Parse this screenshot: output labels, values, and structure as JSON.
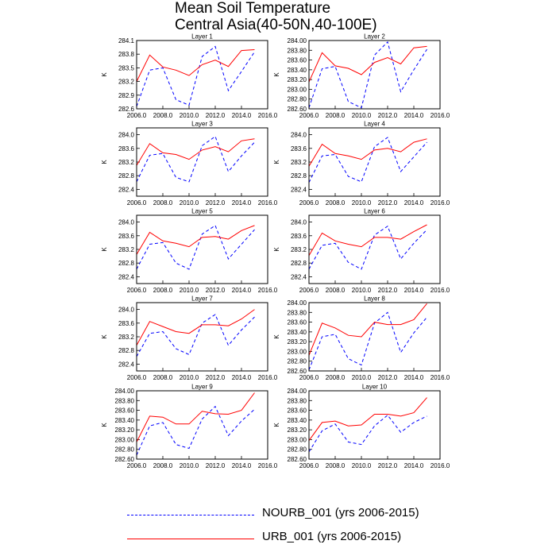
{
  "title": {
    "line1": "Mean Soil Temperature",
    "line2": "Central Asia(40-50N,40-100E)"
  },
  "legend": {
    "items": [
      {
        "label": "NOURB_001 (yrs 2006-2015)",
        "color": "#0000ff",
        "style": "dashed"
      },
      {
        "label": "URB_001 (yrs 2006-2015)",
        "color": "#ff0000",
        "style": "solid"
      }
    ]
  },
  "chart_data": [
    {
      "type": "line",
      "title": "Layer 1",
      "ylabel": "K",
      "x": [
        2006,
        2007,
        2008,
        2009,
        2010,
        2011,
        2012,
        2013,
        2014,
        2015
      ],
      "xlim": [
        2006,
        2016
      ],
      "xticks": [
        "2006.0",
        "2008.0",
        "2010.0",
        "2012.0",
        "2014.0",
        "2016.0"
      ],
      "ylim": [
        282.6,
        284.1
      ],
      "yticks": [
        "282.6",
        "282.9",
        "283.2",
        "283.5",
        "283.8",
        "284.1"
      ],
      "grid": false,
      "series": [
        {
          "name": "NOURB_001 (yrs 2006-2015)",
          "color": "#0000ff",
          "dashed": true,
          "values": [
            282.65,
            283.45,
            283.5,
            282.8,
            282.68,
            283.75,
            283.97,
            283.0,
            283.42,
            283.85
          ]
        },
        {
          "name": "URB_001 (yrs 2006-2015)",
          "color": "#ff0000",
          "dashed": false,
          "values": [
            283.2,
            283.78,
            283.52,
            283.45,
            283.33,
            283.57,
            283.67,
            283.53,
            283.88,
            283.9
          ]
        }
      ]
    },
    {
      "type": "line",
      "title": "Layer 2",
      "ylabel": "K",
      "x": [
        2006,
        2007,
        2008,
        2009,
        2010,
        2011,
        2012,
        2013,
        2014,
        2015
      ],
      "xlim": [
        2006,
        2016
      ],
      "xticks": [
        "2006.0",
        "2008.0",
        "2010.0",
        "2012.0",
        "2014.0",
        "2016.0"
      ],
      "ylim": [
        282.6,
        284.0
      ],
      "yticks": [
        "282.60",
        "282.80",
        "283.00",
        "283.20",
        "283.40",
        "283.60",
        "283.80",
        "284.00"
      ],
      "grid": false,
      "series": [
        {
          "name": "NOURB_001 (yrs 2006-2015)",
          "color": "#0000ff",
          "dashed": true,
          "values": [
            282.62,
            283.42,
            283.47,
            282.75,
            282.62,
            283.7,
            283.97,
            282.95,
            283.4,
            283.82
          ]
        },
        {
          "name": "URB_001 (yrs 2006-2015)",
          "color": "#ff0000",
          "dashed": false,
          "values": [
            283.15,
            283.75,
            283.48,
            283.43,
            283.3,
            283.55,
            283.65,
            283.52,
            283.85,
            283.88
          ]
        }
      ]
    },
    {
      "type": "line",
      "title": "Layer 3",
      "ylabel": "K",
      "x": [
        2006,
        2007,
        2008,
        2009,
        2010,
        2011,
        2012,
        2013,
        2014,
        2015
      ],
      "xlim": [
        2006,
        2016
      ],
      "xticks": [
        "2006.0",
        "2008.0",
        "2010.0",
        "2012.0",
        "2014.0",
        "2016.0"
      ],
      "ylim": [
        282.2,
        284.2
      ],
      "yticks": [
        "282.4",
        "282.8",
        "283.2",
        "283.6",
        "284.0"
      ],
      "grid": false,
      "series": [
        {
          "name": "NOURB_001 (yrs 2006-2015)",
          "color": "#0000ff",
          "dashed": true,
          "values": [
            282.62,
            283.4,
            283.45,
            282.75,
            282.62,
            283.68,
            283.95,
            282.92,
            283.38,
            283.78
          ]
        },
        {
          "name": "URB_001 (yrs 2006-2015)",
          "color": "#ff0000",
          "dashed": false,
          "values": [
            283.1,
            283.74,
            283.47,
            283.42,
            283.28,
            283.55,
            283.65,
            283.5,
            283.82,
            283.88
          ]
        }
      ]
    },
    {
      "type": "line",
      "title": "Layer 4",
      "ylabel": "K",
      "x": [
        2006,
        2007,
        2008,
        2009,
        2010,
        2011,
        2012,
        2013,
        2014,
        2015
      ],
      "xlim": [
        2006,
        2016
      ],
      "xticks": [
        "2006.0",
        "2008.0",
        "2010.0",
        "2012.0",
        "2014.0",
        "2016.0"
      ],
      "ylim": [
        282.2,
        284.2
      ],
      "yticks": [
        "282.4",
        "282.8",
        "283.2",
        "283.6",
        "284.0"
      ],
      "grid": false,
      "series": [
        {
          "name": "NOURB_001 (yrs 2006-2015)",
          "color": "#0000ff",
          "dashed": true,
          "values": [
            282.6,
            283.38,
            283.42,
            282.78,
            282.62,
            283.65,
            283.92,
            282.92,
            283.35,
            283.78
          ]
        },
        {
          "name": "URB_001 (yrs 2006-2015)",
          "color": "#ff0000",
          "dashed": false,
          "values": [
            283.08,
            283.72,
            283.45,
            283.38,
            283.28,
            283.55,
            283.6,
            283.5,
            283.78,
            283.88
          ]
        }
      ]
    },
    {
      "type": "line",
      "title": "Layer 5",
      "ylabel": "K",
      "x": [
        2006,
        2007,
        2008,
        2009,
        2010,
        2011,
        2012,
        2013,
        2014,
        2015
      ],
      "xlim": [
        2006,
        2016
      ],
      "xticks": [
        "2006.0",
        "2008.0",
        "2010.0",
        "2012.0",
        "2014.0",
        "2016.0"
      ],
      "ylim": [
        282.2,
        284.2
      ],
      "yticks": [
        "282.4",
        "282.8",
        "283.2",
        "283.6",
        "284.0"
      ],
      "grid": false,
      "series": [
        {
          "name": "NOURB_001 (yrs 2006-2015)",
          "color": "#0000ff",
          "dashed": true,
          "values": [
            282.62,
            283.35,
            283.4,
            282.8,
            282.62,
            283.65,
            283.9,
            282.92,
            283.35,
            283.78
          ]
        },
        {
          "name": "URB_001 (yrs 2006-2015)",
          "color": "#ff0000",
          "dashed": false,
          "values": [
            283.05,
            283.7,
            283.45,
            283.38,
            283.28,
            283.55,
            283.58,
            283.5,
            283.75,
            283.9
          ]
        }
      ]
    },
    {
      "type": "line",
      "title": "Layer 6",
      "ylabel": "K",
      "x": [
        2006,
        2007,
        2008,
        2009,
        2010,
        2011,
        2012,
        2013,
        2014,
        2015
      ],
      "xlim": [
        2006,
        2016
      ],
      "xticks": [
        "2006.0",
        "2008.0",
        "2010.0",
        "2012.0",
        "2014.0",
        "2016.0"
      ],
      "ylim": [
        282.2,
        284.2
      ],
      "yticks": [
        "282.4",
        "282.8",
        "283.2",
        "283.6",
        "284.0"
      ],
      "grid": false,
      "series": [
        {
          "name": "NOURB_001 (yrs 2006-2015)",
          "color": "#0000ff",
          "dashed": true,
          "values": [
            282.62,
            283.32,
            283.38,
            282.82,
            282.62,
            283.62,
            283.88,
            282.92,
            283.38,
            283.78
          ]
        },
        {
          "name": "URB_001 (yrs 2006-2015)",
          "color": "#ff0000",
          "dashed": false,
          "values": [
            283.02,
            283.68,
            283.45,
            283.35,
            283.28,
            283.55,
            283.55,
            283.5,
            283.72,
            283.92
          ]
        }
      ]
    },
    {
      "type": "line",
      "title": "Layer 7",
      "ylabel": "K",
      "x": [
        2006,
        2007,
        2008,
        2009,
        2010,
        2011,
        2012,
        2013,
        2014,
        2015
      ],
      "xlim": [
        2006,
        2016
      ],
      "xticks": [
        "2006.0",
        "2008.0",
        "2010.0",
        "2012.0",
        "2014.0",
        "2016.0"
      ],
      "ylim": [
        282.2,
        284.2
      ],
      "yticks": [
        "282.4",
        "282.8",
        "283.2",
        "283.6",
        "284.0"
      ],
      "grid": false,
      "series": [
        {
          "name": "NOURB_001 (yrs 2006-2015)",
          "color": "#0000ff",
          "dashed": true,
          "values": [
            282.62,
            283.3,
            283.35,
            282.85,
            282.68,
            283.6,
            283.85,
            282.95,
            283.4,
            283.78
          ]
        },
        {
          "name": "URB_001 (yrs 2006-2015)",
          "color": "#ff0000",
          "dashed": false,
          "values": [
            282.95,
            283.65,
            283.5,
            283.35,
            283.3,
            283.55,
            283.55,
            283.52,
            283.72,
            284.0
          ]
        }
      ]
    },
    {
      "type": "line",
      "title": "Layer 8",
      "ylabel": "K",
      "x": [
        2006,
        2007,
        2008,
        2009,
        2010,
        2011,
        2012,
        2013,
        2014,
        2015
      ],
      "xlim": [
        2006,
        2016
      ],
      "xticks": [
        "2006.0",
        "2008.0",
        "2010.0",
        "2012.0",
        "2014.0",
        "2016.0"
      ],
      "ylim": [
        282.6,
        284.0
      ],
      "yticks": [
        "282.60",
        "282.80",
        "283.00",
        "283.20",
        "283.40",
        "283.60",
        "283.80",
        "284.00"
      ],
      "grid": false,
      "series": [
        {
          "name": "NOURB_001 (yrs 2006-2015)",
          "color": "#0000ff",
          "dashed": true,
          "values": [
            282.62,
            283.3,
            283.35,
            282.85,
            282.72,
            283.58,
            283.8,
            282.98,
            283.38,
            283.7
          ]
        },
        {
          "name": "URB_001 (yrs 2006-2015)",
          "color": "#ff0000",
          "dashed": false,
          "values": [
            282.92,
            283.58,
            283.48,
            283.33,
            283.3,
            283.6,
            283.55,
            283.55,
            283.65,
            283.98
          ]
        }
      ]
    },
    {
      "type": "line",
      "title": "Layer 9",
      "ylabel": "K",
      "x": [
        2006,
        2007,
        2008,
        2009,
        2010,
        2011,
        2012,
        2013,
        2014,
        2015
      ],
      "xlim": [
        2006,
        2016
      ],
      "xticks": [
        "2006.0",
        "2008.0",
        "2010.0",
        "2012.0",
        "2014.0",
        "2016.0"
      ],
      "ylim": [
        282.6,
        284.0
      ],
      "yticks": [
        "282.60",
        "282.80",
        "283.00",
        "283.20",
        "283.40",
        "283.60",
        "283.80",
        "284.00"
      ],
      "grid": false,
      "series": [
        {
          "name": "NOURB_001 (yrs 2006-2015)",
          "color": "#0000ff",
          "dashed": true,
          "values": [
            282.68,
            283.28,
            283.35,
            282.9,
            282.82,
            283.42,
            283.68,
            283.08,
            283.38,
            283.62
          ]
        },
        {
          "name": "URB_001 (yrs 2006-2015)",
          "color": "#ff0000",
          "dashed": false,
          "values": [
            282.95,
            283.48,
            283.46,
            283.32,
            283.32,
            283.58,
            283.53,
            283.52,
            283.6,
            283.96
          ]
        }
      ]
    },
    {
      "type": "line",
      "title": "Layer 10",
      "ylabel": "K",
      "x": [
        2006,
        2007,
        2008,
        2009,
        2010,
        2011,
        2012,
        2013,
        2014,
        2015
      ],
      "xlim": [
        2006,
        2016
      ],
      "xticks": [
        "2006.0",
        "2008.0",
        "2010.0",
        "2012.0",
        "2014.0",
        "2016.0"
      ],
      "ylim": [
        282.6,
        284.0
      ],
      "yticks": [
        "282.60",
        "282.80",
        "283.00",
        "283.20",
        "283.40",
        "283.60",
        "283.80",
        "284.00"
      ],
      "grid": false,
      "series": [
        {
          "name": "NOURB_001 (yrs 2006-2015)",
          "color": "#0000ff",
          "dashed": true,
          "values": [
            282.75,
            283.18,
            283.32,
            282.95,
            282.9,
            283.28,
            283.5,
            283.15,
            283.35,
            283.48
          ]
        },
        {
          "name": "URB_001 (yrs 2006-2015)",
          "color": "#ff0000",
          "dashed": false,
          "values": [
            282.98,
            283.35,
            283.38,
            283.28,
            283.3,
            283.52,
            283.52,
            283.48,
            283.55,
            283.86
          ]
        }
      ]
    }
  ]
}
